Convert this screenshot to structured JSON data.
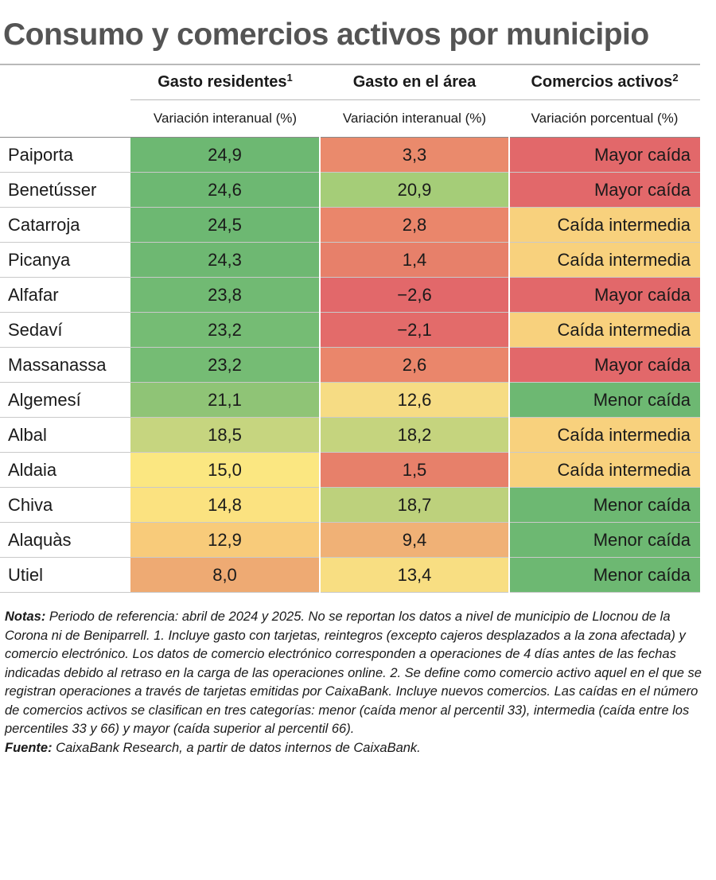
{
  "chart_data": {
    "type": "table",
    "title": "Consumo y comercios activos por municipio",
    "columns": [
      {
        "label": "Gasto residentes",
        "footnote": "1",
        "sublabel": "Variación interanual (%)"
      },
      {
        "label": "Gasto en el área",
        "footnote": "",
        "sublabel": "Variación interanual (%)"
      },
      {
        "label": "Comercios activos",
        "footnote": "2",
        "sublabel": "Variación porcentual (%)"
      }
    ],
    "rows": [
      {
        "municipio": "Paiporta",
        "gasto_residentes": "24,9",
        "gasto_area": "3,3",
        "comercios": "Mayor caída",
        "colors": [
          "#6db872",
          "#ea8a6c",
          "#e2686a"
        ]
      },
      {
        "municipio": "Benetússer",
        "gasto_residentes": "24,6",
        "gasto_area": "20,9",
        "comercios": "Mayor caída",
        "colors": [
          "#6db872",
          "#a5cd78",
          "#e2686a"
        ]
      },
      {
        "municipio": "Catarroja",
        "gasto_residentes": "24,5",
        "gasto_area": "2,8",
        "comercios": "Caída intermedia",
        "colors": [
          "#6db872",
          "#ea866b",
          "#f8d17d"
        ]
      },
      {
        "municipio": "Picanya",
        "gasto_residentes": "24,3",
        "gasto_area": "1,4",
        "comercios": "Caída intermedia",
        "colors": [
          "#6eb872",
          "#e7806a",
          "#f8d17d"
        ]
      },
      {
        "municipio": "Alfafar",
        "gasto_residentes": "23,8",
        "gasto_area": "−2,6",
        "comercios": "Mayor caída",
        "colors": [
          "#71ba73",
          "#e2686a",
          "#e2686a"
        ]
      },
      {
        "municipio": "Sedaví",
        "gasto_residentes": "23,2",
        "gasto_area": "−2,1",
        "comercios": "Caída intermedia",
        "colors": [
          "#75bc74",
          "#e36b6a",
          "#f8d17d"
        ]
      },
      {
        "municipio": "Massanassa",
        "gasto_residentes": "23,2",
        "gasto_area": "2,6",
        "comercios": "Mayor caída",
        "colors": [
          "#75bc74",
          "#ea866b",
          "#e2686a"
        ]
      },
      {
        "municipio": "Algemesí",
        "gasto_residentes": "21,1",
        "gasto_area": "12,6",
        "comercios": "Menor caída",
        "colors": [
          "#8fc476",
          "#f6dc84",
          "#6db872"
        ]
      },
      {
        "municipio": "Albal",
        "gasto_residentes": "18,5",
        "gasto_area": "18,2",
        "comercios": "Caída intermedia",
        "colors": [
          "#c6d57f",
          "#c5d47e",
          "#f8d17d"
        ]
      },
      {
        "municipio": "Aldaia",
        "gasto_residentes": "15,0",
        "gasto_area": "1,5",
        "comercios": "Caída intermedia",
        "colors": [
          "#fbe781",
          "#e7806a",
          "#f8d17d"
        ]
      },
      {
        "municipio": "Chiva",
        "gasto_residentes": "14,8",
        "gasto_area": "18,7",
        "comercios": "Menor caída",
        "colors": [
          "#fbe280",
          "#bdd17c",
          "#6db872"
        ]
      },
      {
        "municipio": "Alaquàs",
        "gasto_residentes": "12,9",
        "gasto_area": "9,4",
        "comercios": "Menor caída",
        "colors": [
          "#f8cb7a",
          "#f0b176",
          "#6db872"
        ]
      },
      {
        "municipio": "Utiel",
        "gasto_residentes": "8,0",
        "gasto_area": "13,4",
        "comercios": "Menor caída",
        "colors": [
          "#eeaa73",
          "#f8de82",
          "#6db872"
        ]
      }
    ]
  },
  "notes": {
    "notas_label": "Notas:",
    "notas_text": " Periodo de referencia: abril de 2024 y 2025. No se reportan los datos a nivel de municipio de Llocnou de la Corona ni de Beniparrell. 1. Incluye gasto con tarjetas, reintegros (excepto cajeros desplazados a la zona afectada) y comercio electrónico. Los datos de comercio electrónico corresponden a operaciones de 4 días antes de las fechas indicadas debido al retraso en la carga de las operaciones online. 2. Se define como comercio activo aquel en el que se registran operaciones a través de tarjetas emitidas por CaixaBank. Incluye nuevos comercios. Las caídas en el número de comercios activos se clasifican en tres categorías: menor (caída menor al percentil 33), intermedia (caída entre los percentiles 33 y 66) y mayor (caída superior al percentil 66).",
    "fuente_label": "Fuente:",
    "fuente_text": " CaixaBank Research, a partir de datos internos de CaixaBank."
  }
}
